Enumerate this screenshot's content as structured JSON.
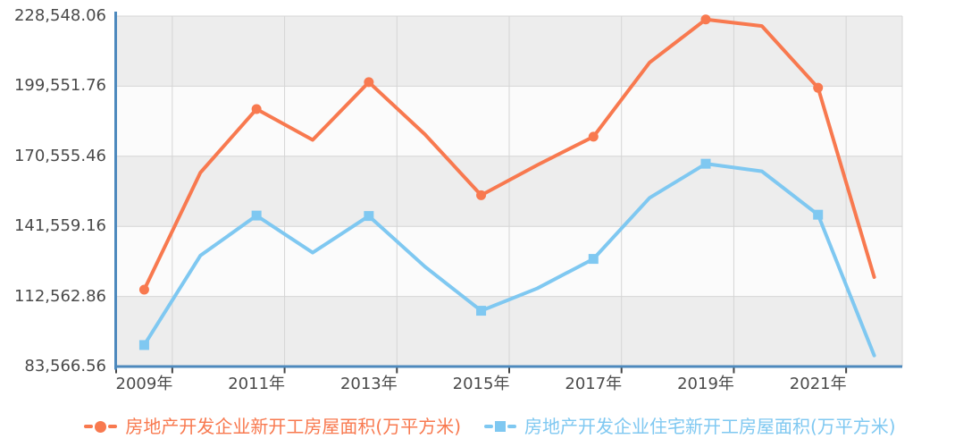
{
  "chart_data": {
    "type": "line",
    "years": [
      2009,
      2010,
      2011,
      2012,
      2013,
      2014,
      2015,
      2016,
      2017,
      2018,
      2019,
      2020,
      2021,
      2022
    ],
    "x_tick_labels": [
      "2009年",
      "2011年",
      "2013年",
      "2015年",
      "2017年",
      "2019年",
      "2021年"
    ],
    "y_tick_labels": [
      "83,566.56",
      "112,562.86",
      "141,559.16",
      "170,555.46",
      "199,551.76",
      "228,548.06"
    ],
    "y_ticks": [
      83566.56,
      112562.86,
      141559.16,
      170555.46,
      199551.76,
      228548.06
    ],
    "ylim": [
      83566.56,
      228548.06
    ],
    "grid": true,
    "legend_position": "bottom",
    "marker_every": 2,
    "series": [
      {
        "name": "房地产开发企业新开工房屋面积(万平方米)",
        "marker": "circle",
        "color": "#f8794f",
        "values": [
          115385,
          163777,
          190083,
          177334,
          201208,
          179592,
          154454,
          166928,
          178654,
          209342,
          227154,
          224433,
          198895,
          120587
        ]
      },
      {
        "name": "房地产开发企业住宅新开工房屋面积(万平方米)",
        "marker": "square",
        "color": "#7fc8f1",
        "values": [
          92463,
          129468,
          146022,
          130695,
          145845,
          124877,
          106651,
          115911,
          128098,
          153353,
          167463,
          164329,
          146379,
          88135
        ]
      }
    ]
  },
  "theme": {
    "axis_line": "#4d89bd",
    "band_gray": "#ededed",
    "band_light": "#fbfbfb",
    "grid_line": "#d5d5d5",
    "tick_color": "#444444",
    "label_color": "#4a4a4a",
    "background": "#ffffff"
  }
}
